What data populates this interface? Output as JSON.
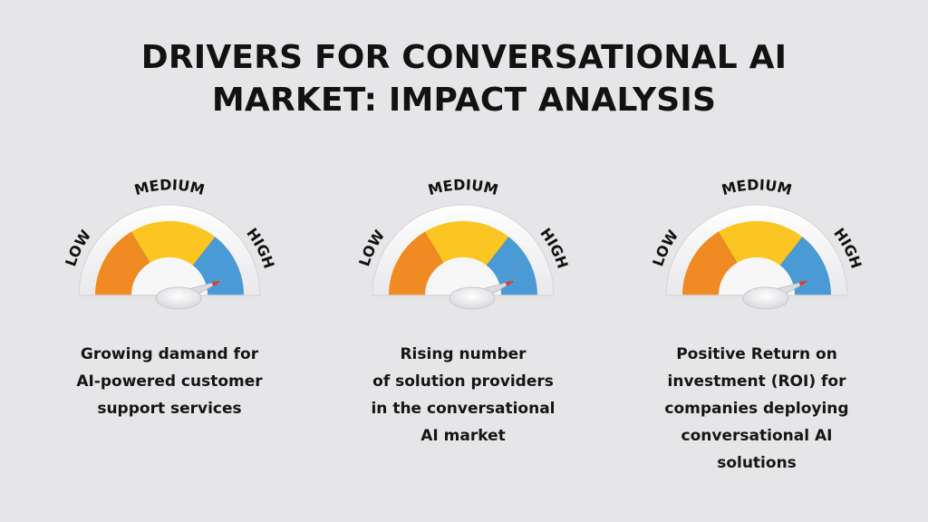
{
  "title": {
    "line1": "DRIVERS FOR CONVERSATIONAL AI",
    "line2": "MARKET: IMPACT ANALYSIS"
  },
  "gauge_labels": {
    "low": "LOW",
    "medium": "MEDIUM",
    "high": "HIGH"
  },
  "colors": {
    "low": "#f08a22",
    "medium": "#fbc522",
    "high": "#4a9ad6",
    "needle": "#d9402c"
  },
  "drivers": [
    {
      "impact": "high",
      "caption": [
        "Growing damand for",
        "AI-powered customer",
        "support services"
      ]
    },
    {
      "impact": "high",
      "caption": [
        "Rising number",
        "of solution providers",
        "in the conversational",
        "AI market"
      ]
    },
    {
      "impact": "high",
      "caption": [
        "Positive Return on",
        "investment (ROI) for",
        "companies deploying",
        "conversational AI",
        "solutions"
      ]
    }
  ]
}
